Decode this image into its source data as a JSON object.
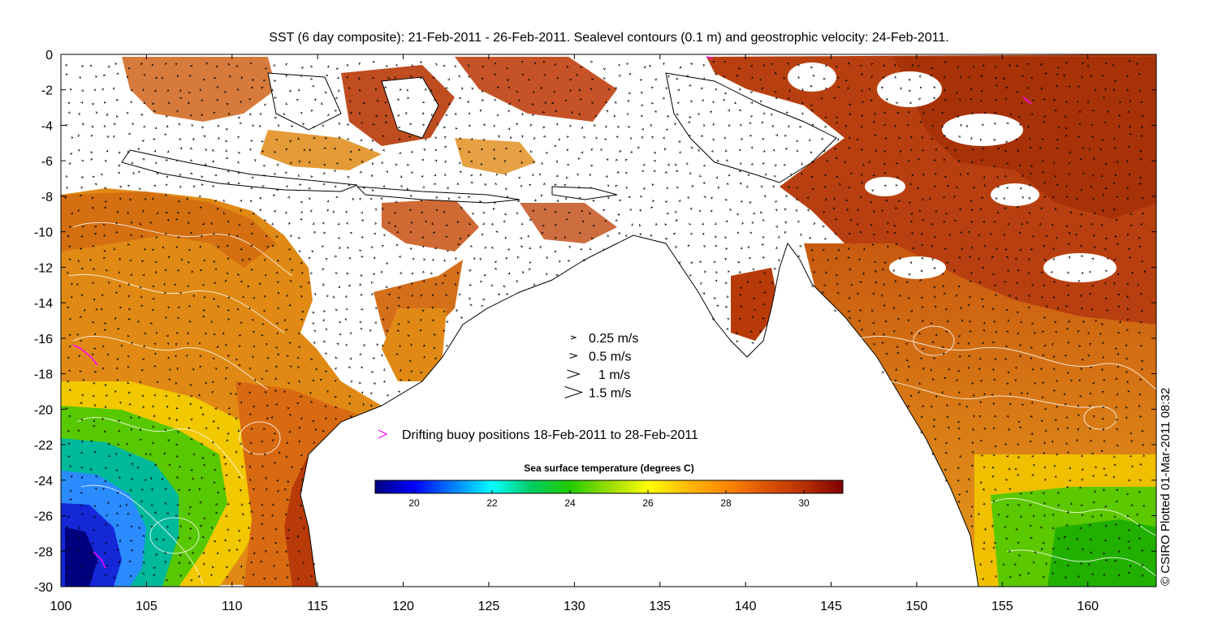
{
  "title": "SST (6 day composite): 21-Feb-2011 - 26-Feb-2011. Sealevel contours (0.1 m) and geostrophic velocity: 24-Feb-2011.",
  "credit": "© CSIRO Plotted 01-Mar-2011 08:32",
  "map": {
    "lon_range": [
      100,
      164
    ],
    "lat_range": [
      -30,
      0
    ],
    "x_ticks": [
      "100",
      "105",
      "110",
      "115",
      "120",
      "125",
      "130",
      "135",
      "140",
      "145",
      "150",
      "155",
      "160"
    ],
    "x_tick_values": [
      100,
      105,
      110,
      115,
      120,
      125,
      130,
      135,
      140,
      145,
      150,
      155,
      160
    ],
    "y_ticks": [
      "0",
      "-2",
      "-4",
      "-6",
      "-8",
      "-10",
      "-12",
      "-14",
      "-16",
      "-18",
      "-20",
      "-22",
      "-24",
      "-26",
      "-28",
      "-30"
    ],
    "y_tick_values": [
      0,
      -2,
      -4,
      -6,
      -8,
      -10,
      -12,
      -14,
      -16,
      -18,
      -20,
      -22,
      -24,
      -26,
      -28,
      -30
    ]
  },
  "velocity_legend": [
    {
      "label": "0.25 m/s",
      "speed": 0.25
    },
    {
      "label": "0.5 m/s",
      "speed": 0.5
    },
    {
      "label": "1 m/s",
      "speed": 1.0
    },
    {
      "label": "1.5 m/s",
      "speed": 1.5
    }
  ],
  "buoy_legend": {
    "label": "Drifting buoy positions 18-Feb-2011 to 28-Feb-2011",
    "color": "#ff00ff"
  },
  "colorbar": {
    "title": "Sea surface temperature (degrees C)",
    "range": [
      19,
      31
    ],
    "ticks": [
      "20",
      "22",
      "24",
      "26",
      "28",
      "30"
    ],
    "tick_values": [
      20,
      22,
      24,
      26,
      28,
      30
    ],
    "colors": [
      "#00007f",
      "#0000ff",
      "#007fff",
      "#00ffff",
      "#00cc66",
      "#22cc00",
      "#99dd00",
      "#ffff00",
      "#ffbb00",
      "#ff8800",
      "#dd5500",
      "#b83000",
      "#800000"
    ]
  }
}
